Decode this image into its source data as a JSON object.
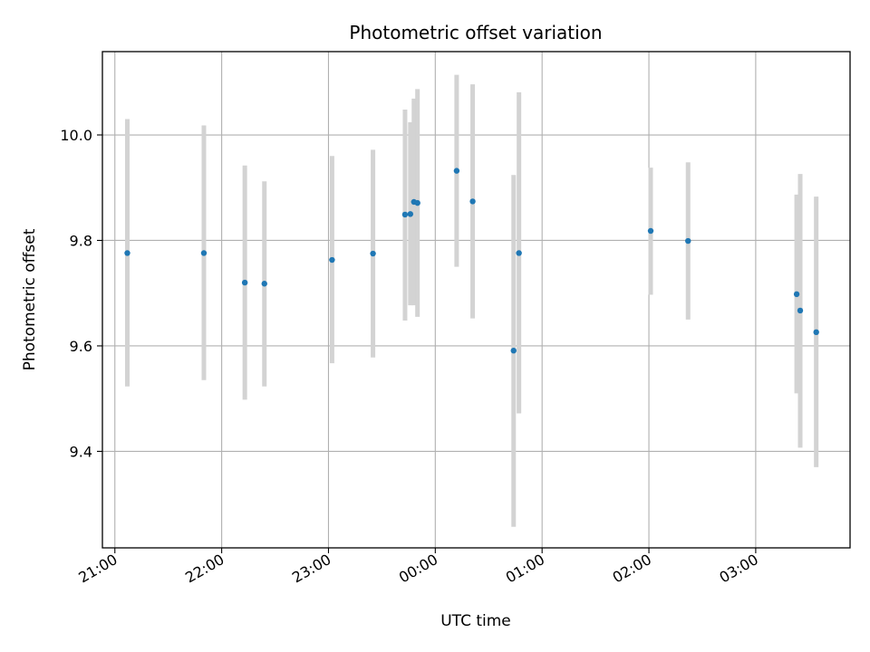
{
  "chart_data": {
    "type": "scatter",
    "title": "Photometric offset variation",
    "xlabel": "UTC time",
    "ylabel": "Photometric offset",
    "x_unit": "UTC time (HH:MM)",
    "xlim": [
      "20:53",
      "03:53"
    ],
    "ylim": [
      9.217,
      10.158
    ],
    "x_ticks": [
      "21:00",
      "22:00",
      "23:00",
      "00:00",
      "01:00",
      "02:00",
      "03:00"
    ],
    "y_ticks": [
      "9.4",
      "9.6",
      "9.8",
      "10.0"
    ],
    "grid": true,
    "legend": "none",
    "marker_color": "#1f77b4",
    "errorbar_color": "#d3d3d3",
    "points": [
      {
        "x": "21:07",
        "y": 9.776,
        "y_low": 9.523,
        "y_high": 10.03
      },
      {
        "x": "21:50",
        "y": 9.776,
        "y_low": 9.535,
        "y_high": 10.018
      },
      {
        "x": "22:13",
        "y": 9.72,
        "y_low": 9.498,
        "y_high": 9.942
      },
      {
        "x": "22:24",
        "y": 9.718,
        "y_low": 9.523,
        "y_high": 9.912
      },
      {
        "x": "23:02",
        "y": 9.763,
        "y_low": 9.567,
        "y_high": 9.96
      },
      {
        "x": "23:25",
        "y": 9.775,
        "y_low": 9.578,
        "y_high": 9.972
      },
      {
        "x": "23:43",
        "y": 9.849,
        "y_low": 9.648,
        "y_high": 10.048
      },
      {
        "x": "23:46",
        "y": 9.85,
        "y_low": 9.677,
        "y_high": 10.024
      },
      {
        "x": "23:48",
        "y": 9.873,
        "y_low": 9.677,
        "y_high": 10.069
      },
      {
        "x": "23:50",
        "y": 9.871,
        "y_low": 9.655,
        "y_high": 10.087
      },
      {
        "x": "00:12",
        "y": 9.932,
        "y_low": 9.75,
        "y_high": 10.114
      },
      {
        "x": "00:21",
        "y": 9.874,
        "y_low": 9.652,
        "y_high": 10.096
      },
      {
        "x": "00:44",
        "y": 9.591,
        "y_low": 9.257,
        "y_high": 9.924
      },
      {
        "x": "00:47",
        "y": 9.776,
        "y_low": 9.472,
        "y_high": 10.081
      },
      {
        "x": "02:01",
        "y": 9.818,
        "y_low": 9.697,
        "y_high": 9.938
      },
      {
        "x": "02:22",
        "y": 9.799,
        "y_low": 9.65,
        "y_high": 9.948
      },
      {
        "x": "03:23",
        "y": 9.698,
        "y_low": 9.51,
        "y_high": 9.887
      },
      {
        "x": "03:25",
        "y": 9.667,
        "y_low": 9.407,
        "y_high": 9.926
      },
      {
        "x": "03:34",
        "y": 9.626,
        "y_low": 9.37,
        "y_high": 9.883
      }
    ]
  }
}
